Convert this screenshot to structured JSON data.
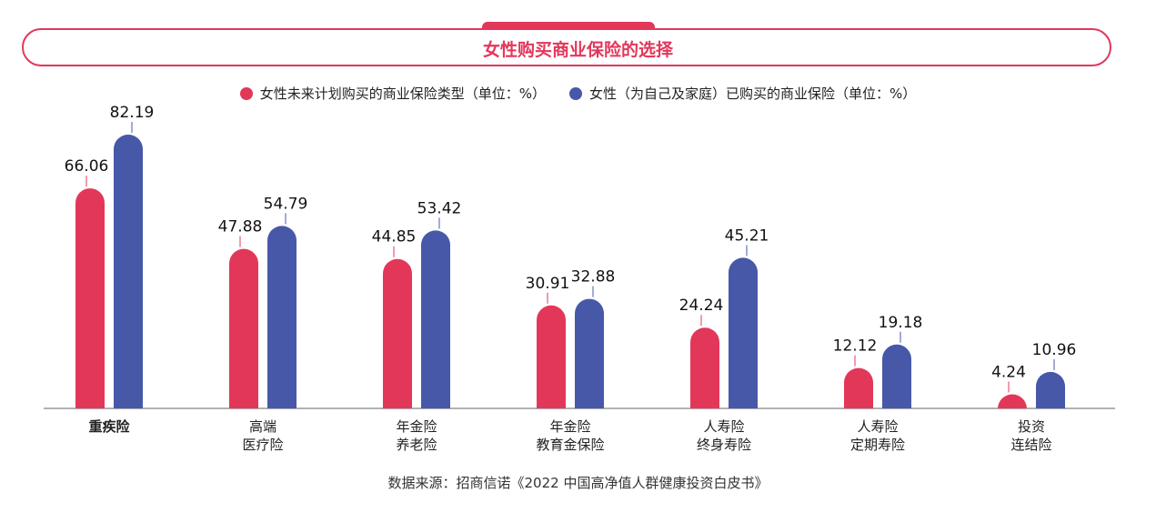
{
  "chart_data": {
    "type": "bar",
    "title": "女性购买商业保险的选择",
    "categories": [
      [
        "重疾险"
      ],
      [
        "高端",
        "医疗险"
      ],
      [
        "年金险",
        "养老险"
      ],
      [
        "年金险",
        "教育金保险"
      ],
      [
        "人寿险",
        "终身寿险"
      ],
      [
        "人寿险",
        "定期寿险"
      ],
      [
        "投资",
        "连结险"
      ]
    ],
    "series": [
      {
        "name": "女性未来计划购买的商业保险类型（单位：%）",
        "color": "#e3375a",
        "values": [
          66.06,
          47.88,
          44.85,
          30.91,
          24.24,
          12.12,
          4.24
        ]
      },
      {
        "name": "女性（为自己及家庭）已购买的商业保险（单位：%）",
        "color": "#4758a8",
        "values": [
          82.19,
          54.79,
          53.42,
          32.88,
          45.21,
          19.18,
          10.96
        ]
      }
    ],
    "ylim": [
      0,
      82.19
    ],
    "bold_category_index": 0,
    "legend": "top-center",
    "grid": false
  },
  "source": "数据来源：招商信诺《2022 中国高净值人群健康投资白皮书》"
}
